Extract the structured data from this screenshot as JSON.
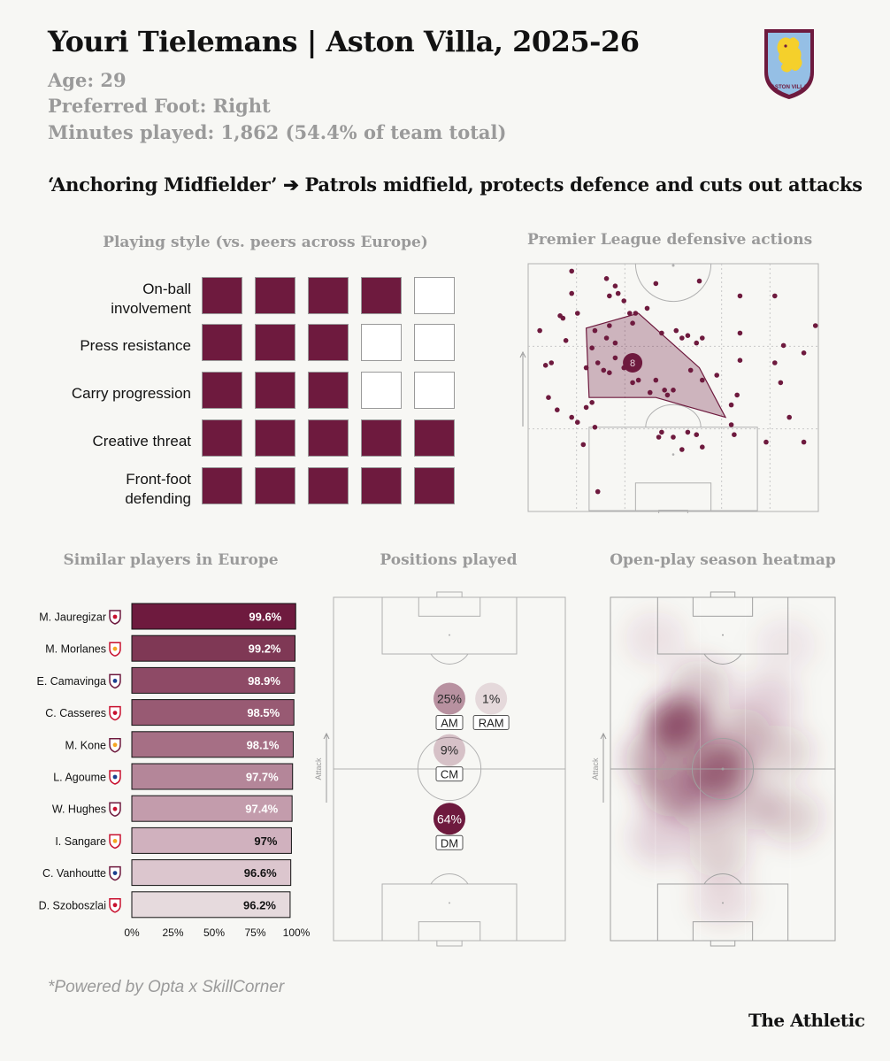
{
  "header": {
    "title": "Youri Tielemans | Aston Villa, 2025-26",
    "age": "Age: 29",
    "foot": "Preferred Foot: Right",
    "minutes": "Minutes played: 1,862 (54.4% of team total)",
    "role": "‘Anchoring Midfielder’ ➔ Patrols midfield, protects defence and cuts out attacks"
  },
  "logo": {
    "icon": "aston-villa-crest-icon",
    "text": "ASTON VILLA",
    "colors": {
      "claret": "#6e1a3e",
      "blue": "#95bfe5",
      "gold": "#f5d02b"
    }
  },
  "sections": {
    "style_title": "Playing style (vs. peers across Europe)",
    "defensive_title": "Premier League defensive actions",
    "similar_title": "Similar players in Europe",
    "positions_title": "Positions played",
    "heatmap_title": "Open-play season heatmap"
  },
  "colors": {
    "claret": "#6e1a3e",
    "grey": "#9a9a9a",
    "background": "#f7f7f4",
    "pitch_line": "#b0b0b0"
  },
  "chart_data": [
    {
      "type": "table",
      "name_key": "playing_style",
      "title": "Playing style (vs. peers across Europe)",
      "max_boxes": 5,
      "rows": [
        {
          "label": "On-ball involvement",
          "filled": 4
        },
        {
          "label": "Press resistance",
          "filled": 3
        },
        {
          "label": "Carry progression",
          "filled": 3
        },
        {
          "label": "Creative threat",
          "filled": 5
        },
        {
          "label": "Front-foot defending",
          "filled": 5
        }
      ]
    },
    {
      "type": "scatter",
      "name_key": "defensive_actions",
      "title": "Premier League defensive actions",
      "x_range": [
        0,
        100
      ],
      "y_range": [
        0,
        100
      ],
      "average_marker": {
        "label": "8",
        "x": 36,
        "y": 60
      },
      "hull": [
        [
          20,
          74
        ],
        [
          38,
          80
        ],
        [
          59,
          58
        ],
        [
          68,
          38
        ],
        [
          44,
          46
        ],
        [
          21,
          46
        ]
      ],
      "points": [
        [
          15,
          97
        ],
        [
          27,
          94
        ],
        [
          30,
          91
        ],
        [
          28,
          87
        ],
        [
          31,
          88
        ],
        [
          33,
          85
        ],
        [
          41,
          82
        ],
        [
          44,
          92
        ],
        [
          59,
          93
        ],
        [
          73,
          87
        ],
        [
          85,
          87
        ],
        [
          15,
          88
        ],
        [
          11,
          79
        ],
        [
          12,
          78
        ],
        [
          17,
          80
        ],
        [
          23,
          73
        ],
        [
          22,
          66
        ],
        [
          27,
          70
        ],
        [
          28,
          75
        ],
        [
          30,
          68
        ],
        [
          35,
          80
        ],
        [
          37,
          80
        ],
        [
          36,
          76
        ],
        [
          46,
          72
        ],
        [
          51,
          73
        ],
        [
          53,
          70
        ],
        [
          55,
          71
        ],
        [
          58,
          68
        ],
        [
          60,
          70
        ],
        [
          73,
          72
        ],
        [
          88,
          67
        ],
        [
          95,
          64
        ],
        [
          99,
          75
        ],
        [
          4,
          73
        ],
        [
          6,
          59
        ],
        [
          8,
          60
        ],
        [
          13,
          69
        ],
        [
          20,
          58
        ],
        [
          24,
          60
        ],
        [
          26,
          57
        ],
        [
          28,
          56
        ],
        [
          30,
          62
        ],
        [
          33,
          58
        ],
        [
          36,
          52
        ],
        [
          38,
          53
        ],
        [
          42,
          48
        ],
        [
          44,
          53
        ],
        [
          47,
          49
        ],
        [
          48,
          47
        ],
        [
          50,
          49
        ],
        [
          56,
          57
        ],
        [
          60,
          53
        ],
        [
          65,
          55
        ],
        [
          70,
          43
        ],
        [
          73,
          61
        ],
        [
          85,
          60
        ],
        [
          87,
          52
        ],
        [
          72,
          47
        ],
        [
          7,
          46
        ],
        [
          10,
          41
        ],
        [
          20,
          42
        ],
        [
          22,
          44
        ],
        [
          23,
          34
        ],
        [
          17,
          36
        ],
        [
          19,
          27
        ],
        [
          15,
          38
        ],
        [
          45,
          30
        ],
        [
          46,
          32
        ],
        [
          50,
          30
        ],
        [
          53,
          25
        ],
        [
          55,
          32
        ],
        [
          58,
          31
        ],
        [
          60,
          26
        ],
        [
          70,
          35
        ],
        [
          71,
          31
        ],
        [
          82,
          28
        ],
        [
          90,
          38
        ],
        [
          95,
          28
        ],
        [
          24,
          8
        ]
      ]
    },
    {
      "type": "bar",
      "name_key": "similar_players",
      "title": "Similar players in Europe",
      "xlim": [
        0,
        100
      ],
      "x_ticks": [
        "0%",
        "25%",
        "50%",
        "75%",
        "100%"
      ],
      "categories": [
        "M. Jauregizar",
        "M. Morlanes",
        "E. Camavinga",
        "C. Casseres",
        "M. Kone",
        "L. Agoume",
        "W. Hughes",
        "I. Sangare",
        "C. Vanhoutte",
        "D. Szoboszlai"
      ],
      "club_icons": [
        "athletic-club-crest-icon",
        "mallorca-crest-icon",
        "real-madrid-crest-icon",
        "toulouse-crest-icon",
        "roma-crest-icon",
        "sevilla-crest-icon",
        "crystal-palace-crest-icon",
        "nottingham-forest-crest-icon",
        "nice-crest-icon",
        "liverpool-crest-icon"
      ],
      "values": [
        99.6,
        99.2,
        98.9,
        98.5,
        98.1,
        97.7,
        97.4,
        97,
        96.6,
        96.2
      ],
      "value_labels": [
        "99.6%",
        "99.2%",
        "98.9%",
        "98.5%",
        "98.1%",
        "97.7%",
        "97.4%",
        "97%",
        "96.6%",
        "96.2%"
      ],
      "bar_colors": [
        "#6e1a3e",
        "#7f3855",
        "#8e4a66",
        "#985a73",
        "#a66f85",
        "#b48699",
        "#c39cac",
        "#d0b1be",
        "#dcc6ce",
        "#e6dadd"
      ],
      "label_colors": [
        "#ffffff",
        "#ffffff",
        "#ffffff",
        "#ffffff",
        "#ffffff",
        "#ffffff",
        "#ffffff",
        "#121212",
        "#121212",
        "#121212"
      ]
    },
    {
      "type": "scatter",
      "name_key": "positions_played",
      "title": "Positions played",
      "axis_label": "Attack",
      "positions": [
        {
          "code": "AM",
          "share": "25%",
          "value": 25,
          "x": 50,
          "y": 70.5
        },
        {
          "code": "RAM",
          "share": "1%",
          "value": 1,
          "x": 68,
          "y": 70.5
        },
        {
          "code": "CM",
          "share": "9%",
          "value": 9,
          "x": 50,
          "y": 55.5
        },
        {
          "code": "DM",
          "share": "64%",
          "value": 64,
          "x": 50,
          "y": 35.5
        }
      ]
    },
    {
      "type": "heatmap",
      "name_key": "season_heatmap",
      "title": "Open-play season heatmap",
      "axis_label": "Attack",
      "blobs": [
        {
          "x": 30,
          "y": 63,
          "weight": 1.0
        },
        {
          "x": 48,
          "y": 50,
          "weight": 0.9
        },
        {
          "x": 20,
          "y": 53,
          "weight": 0.45
        },
        {
          "x": 27,
          "y": 44,
          "weight": 0.5
        },
        {
          "x": 40,
          "y": 40,
          "weight": 0.4
        },
        {
          "x": 58,
          "y": 60,
          "weight": 0.35
        },
        {
          "x": 62,
          "y": 40,
          "weight": 0.3
        },
        {
          "x": 76,
          "y": 55,
          "weight": 0.25
        },
        {
          "x": 80,
          "y": 36,
          "weight": 0.25
        },
        {
          "x": 48,
          "y": 26,
          "weight": 0.25
        },
        {
          "x": 50,
          "y": 12,
          "weight": 0.15
        },
        {
          "x": 20,
          "y": 88,
          "weight": 0.12
        },
        {
          "x": 78,
          "y": 86,
          "weight": 0.1
        },
        {
          "x": 40,
          "y": 74,
          "weight": 0.3
        },
        {
          "x": 70,
          "y": 70,
          "weight": 0.2
        },
        {
          "x": 22,
          "y": 30,
          "weight": 0.2
        }
      ]
    }
  ],
  "footer": {
    "footnote": "*Powered by Opta x SkillCorner",
    "brand": "The Athletic"
  }
}
